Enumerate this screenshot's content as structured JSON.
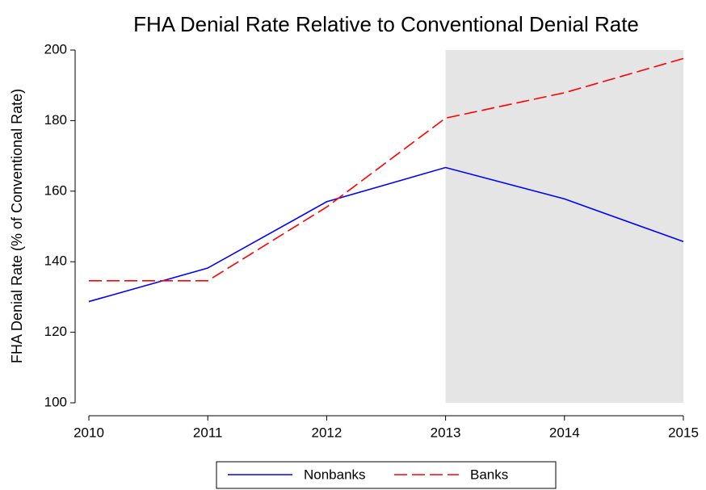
{
  "chart_data": {
    "type": "line",
    "title": "FHA Denial Rate Relative to Conventional Denial Rate",
    "y_label": "FHA Denial Rate (% of Conventional Rate)",
    "x": [
      2010,
      2011,
      2012,
      2013,
      2014,
      2015
    ],
    "series": [
      {
        "name": "Nonbanks",
        "color": "#0000ff",
        "style": "solid",
        "values": [
          128.7,
          138.2,
          157.0,
          166.7,
          157.8,
          145.7
        ]
      },
      {
        "name": "Banks",
        "color": "#ff0000",
        "style": "dashed",
        "values": [
          134.6,
          134.6,
          155.5,
          180.7,
          187.9,
          197.6
        ]
      }
    ],
    "shaded_region": {
      "x": [
        2013,
        2015
      ],
      "y": [
        100,
        200
      ],
      "color": "#e5e5e5"
    },
    "xlim": [
      2010,
      2015
    ],
    "xticks": [
      2010,
      2011,
      2012,
      2013,
      2014,
      2015
    ],
    "ylim": [
      100,
      200
    ],
    "yticks": [
      100,
      120,
      140,
      160,
      180,
      200
    ],
    "legend": "bottom"
  }
}
